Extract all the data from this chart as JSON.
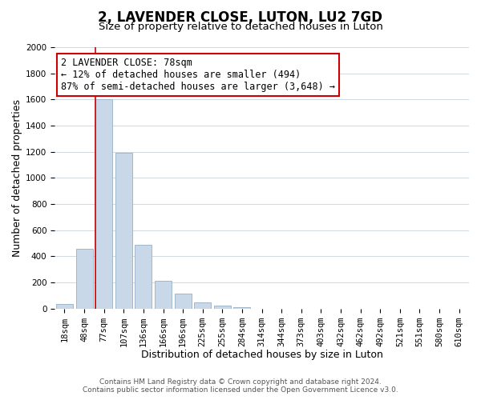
{
  "title": "2, LAVENDER CLOSE, LUTON, LU2 7GD",
  "subtitle": "Size of property relative to detached houses in Luton",
  "xlabel": "Distribution of detached houses by size in Luton",
  "ylabel": "Number of detached properties",
  "bar_labels": [
    "18sqm",
    "48sqm",
    "77sqm",
    "107sqm",
    "136sqm",
    "166sqm",
    "196sqm",
    "225sqm",
    "255sqm",
    "284sqm",
    "314sqm",
    "344sqm",
    "373sqm",
    "403sqm",
    "432sqm",
    "462sqm",
    "492sqm",
    "521sqm",
    "551sqm",
    "580sqm",
    "610sqm"
  ],
  "bar_values": [
    35,
    455,
    1600,
    1190,
    490,
    210,
    115,
    45,
    20,
    10,
    0,
    0,
    0,
    0,
    0,
    0,
    0,
    0,
    0,
    0,
    0
  ],
  "bar_color": "#c8d8e8",
  "bar_edge_color": "#a0b8cc",
  "property_line_x": 1.575,
  "property_line_color": "#cc0000",
  "annotation_line1": "2 LAVENDER CLOSE: 78sqm",
  "annotation_line2": "← 12% of detached houses are smaller (494)",
  "annotation_line3": "87% of semi-detached houses are larger (3,648) →",
  "annotation_box_color": "#ffffff",
  "annotation_box_edge_color": "#cc0000",
  "ylim": [
    0,
    2000
  ],
  "yticks": [
    0,
    200,
    400,
    600,
    800,
    1000,
    1200,
    1400,
    1600,
    1800,
    2000
  ],
  "footer_line1": "Contains HM Land Registry data © Crown copyright and database right 2024.",
  "footer_line2": "Contains public sector information licensed under the Open Government Licence v3.0.",
  "background_color": "#ffffff",
  "grid_color": "#d0d8e0",
  "title_fontsize": 12,
  "subtitle_fontsize": 9.5,
  "axis_label_fontsize": 9,
  "tick_fontsize": 7.5,
  "annotation_fontsize": 8.5,
  "footer_fontsize": 6.5
}
